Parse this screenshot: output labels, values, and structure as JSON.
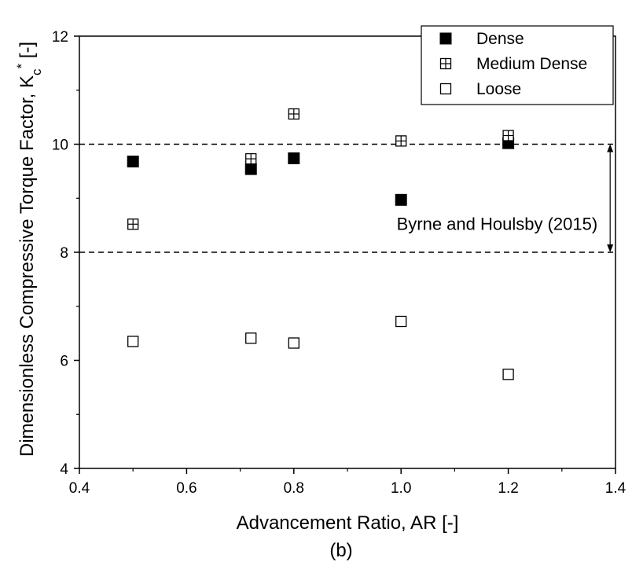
{
  "chart_data": {
    "type": "scatter",
    "xlabel": "Advancement Ratio, AR [-]",
    "ylabel": {
      "main": "Dimensionless Compressive Torque Factor, K",
      "subscript": "c",
      "superscript": "*",
      "unit": " [-]"
    },
    "caption": "(b)",
    "xlim": [
      0.4,
      1.4
    ],
    "ylim": [
      4,
      12
    ],
    "xticks": [
      "0.4",
      "0.6",
      "0.8",
      "1.0",
      "1.2",
      "1.4"
    ],
    "yticks": [
      "4",
      "6",
      "8",
      "10",
      "12"
    ],
    "grid": false,
    "legend_position": "top-right",
    "series": [
      {
        "name": "Dense",
        "marker": "filled-square",
        "color": "#000000",
        "x": [
          0.5,
          0.72,
          0.8,
          1.0,
          1.2
        ],
        "y": [
          9.68,
          9.54,
          9.74,
          8.97,
          10.02
        ]
      },
      {
        "name": "Medium Dense",
        "marker": "crossed-square",
        "color": "#000000",
        "x": [
          0.5,
          0.72,
          0.8,
          1.0,
          1.2
        ],
        "y": [
          8.52,
          9.73,
          10.56,
          10.06,
          10.16
        ]
      },
      {
        "name": "Loose",
        "marker": "open-square",
        "color": "#000000",
        "x": [
          0.5,
          0.72,
          0.8,
          1.0,
          1.2
        ],
        "y": [
          6.35,
          6.41,
          6.32,
          6.72,
          5.74
        ]
      }
    ],
    "reference_lines": [
      {
        "y": 10,
        "style": "dashed"
      },
      {
        "y": 8,
        "style": "dashed"
      }
    ],
    "annotation": {
      "text": "Byrne and Houlsby (2015)",
      "range": [
        8,
        10
      ],
      "x": 1.39
    }
  }
}
